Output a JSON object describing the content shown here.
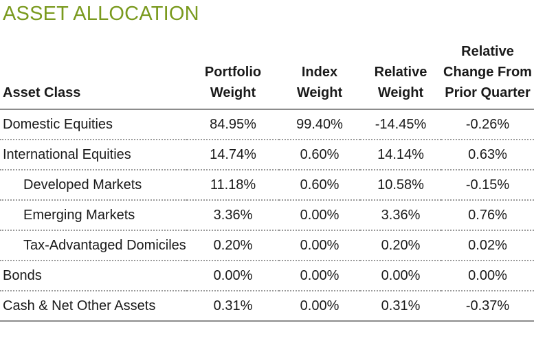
{
  "title": "ASSET ALLOCATION",
  "headers": [
    "Asset Class",
    "Portfolio Weight",
    "Index Weight",
    "Relative Weight",
    "Relative Change From Prior Quarter"
  ],
  "rows": [
    {
      "name": "Domestic Equities",
      "indent": false,
      "portfolio": "84.95%",
      "index": "99.40%",
      "relative": "-14.45%",
      "change": "-0.26%"
    },
    {
      "name": "International Equities",
      "indent": false,
      "portfolio": "14.74%",
      "index": "0.60%",
      "relative": "14.14%",
      "change": "0.63%"
    },
    {
      "name": "Developed Markets",
      "indent": true,
      "portfolio": "11.18%",
      "index": "0.60%",
      "relative": "10.58%",
      "change": "-0.15%"
    },
    {
      "name": "Emerging Markets",
      "indent": true,
      "portfolio": "3.36%",
      "index": "0.00%",
      "relative": "3.36%",
      "change": "0.76%"
    },
    {
      "name": "Tax-Advantaged Domiciles",
      "indent": true,
      "portfolio": "0.20%",
      "index": "0.00%",
      "relative": "0.20%",
      "change": "0.02%"
    },
    {
      "name": "Bonds",
      "indent": false,
      "portfolio": "0.00%",
      "index": "0.00%",
      "relative": "0.00%",
      "change": "0.00%"
    },
    {
      "name": "Cash & Net Other Assets",
      "indent": false,
      "portfolio": "0.31%",
      "index": "0.00%",
      "relative": "0.31%",
      "change": "-0.37%"
    }
  ],
  "colors": {
    "title": "#7a9a1e",
    "rule": "#8c8c8c"
  }
}
